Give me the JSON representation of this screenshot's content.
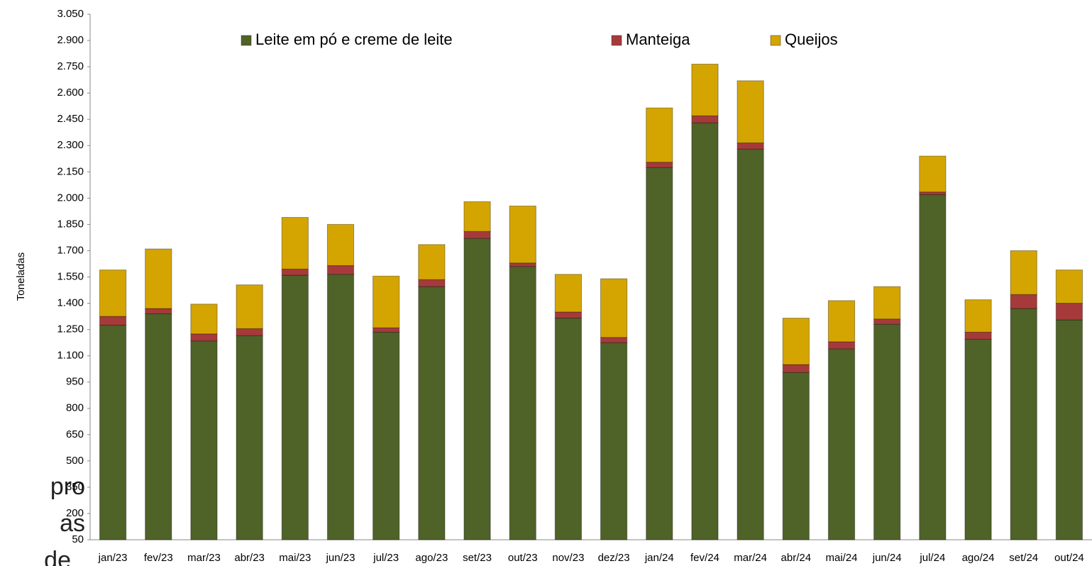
{
  "chart_data": {
    "type": "stacked_bar",
    "y_label": "Toneladas",
    "categories": [
      "jan/23",
      "fev/23",
      "mar/23",
      "abr/23",
      "mai/23",
      "jun/23",
      "jul/23",
      "ago/23",
      "set/23",
      "out/23",
      "nov/23",
      "dez/23",
      "jan/24",
      "fev/24",
      "mar/24",
      "abr/24",
      "mai/24",
      "jun/24",
      "jul/24",
      "ago/24",
      "set/24",
      "out/24"
    ],
    "series": [
      {
        "name": "Leite em pó e creme de leite",
        "color": "#4f6228",
        "values": [
          1275,
          1340,
          1185,
          1215,
          1560,
          1565,
          1235,
          1495,
          1770,
          1610,
          1315,
          1175,
          2175,
          2430,
          2280,
          1005,
          1140,
          1280,
          2020,
          1195,
          1370,
          1305
        ]
      },
      {
        "name": "Manteiga",
        "color": "#a63a3a",
        "values": [
          50,
          30,
          40,
          40,
          35,
          50,
          25,
          40,
          40,
          20,
          35,
          30,
          30,
          40,
          35,
          45,
          40,
          30,
          15,
          40,
          80,
          95
        ]
      },
      {
        "name": "Queijos",
        "color": "#d4a500",
        "values": [
          265,
          340,
          170,
          250,
          295,
          235,
          295,
          200,
          170,
          325,
          215,
          335,
          310,
          295,
          355,
          265,
          235,
          185,
          205,
          185,
          250,
          190
        ]
      }
    ],
    "ylim": [
      50,
      3050
    ],
    "yticks": [
      50,
      200,
      350,
      500,
      650,
      800,
      950,
      {
        "value": 1100,
        "label": "1.100"
      },
      {
        "value": 1250,
        "label": "1.250"
      },
      {
        "value": 1400,
        "label": "1.400"
      },
      {
        "value": 1550,
        "label": "1.550"
      },
      {
        "value": 1700,
        "label": "1.700"
      },
      {
        "value": 1850,
        "label": "1.850"
      },
      {
        "value": 2000,
        "label": "2.000"
      },
      {
        "value": 2150,
        "label": "2.150"
      },
      {
        "value": 2300,
        "label": "2.300"
      },
      {
        "value": 2450,
        "label": "2.450"
      },
      {
        "value": 2600,
        "label": "2.600"
      },
      {
        "value": 2750,
        "label": "2.750"
      },
      {
        "value": 2900,
        "label": "2.900"
      },
      {
        "value": 3050,
        "label": "3.050"
      }
    ],
    "legend": "top",
    "grid": false
  },
  "background_text": [
    "pro",
    "as",
    "de"
  ]
}
